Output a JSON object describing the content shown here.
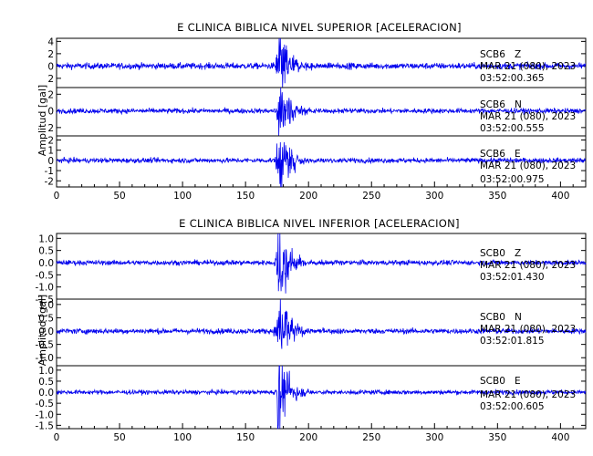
{
  "panels": [
    {
      "id": "superior",
      "title": "E CLINICA BIBLICA NIVEL SUPERIOR [ACELERACION]",
      "ylabel": "Amplitud [gal]",
      "xlim": [
        0,
        420
      ],
      "xticks": [
        0,
        50,
        100,
        150,
        200,
        250,
        300,
        350,
        400
      ],
      "traces": [
        {
          "station": "SCB6",
          "component": "Z",
          "date": "MAR 21 (080), 2023",
          "time": "03:52:00.365",
          "ylim": [
            -3.5,
            4.5
          ],
          "yticks": [
            "4",
            "2",
            "0",
            "2",
            "4"
          ],
          "ytick_values": [
            4,
            2,
            0,
            -2,
            -4
          ],
          "noise": 0.25,
          "peak": 4.4,
          "arrival": 176,
          "decay": 8
        },
        {
          "station": "SCB6",
          "component": "N",
          "date": "MAR 21 (080), 2023",
          "time": "03:52:00.555",
          "ylim": [
            -3,
            2.8
          ],
          "yticks": [
            "2",
            "0",
            "2"
          ],
          "ytick_values": [
            2,
            0,
            -2
          ],
          "noise": 0.15,
          "peak": 2.7,
          "arrival": 176,
          "decay": 9
        },
        {
          "station": "SCB6",
          "component": "E",
          "date": "MAR 21 (080), 2023",
          "time": "03:52:00.975",
          "ylim": [
            -2.6,
            2.4
          ],
          "yticks": [
            "2",
            "1",
            "0",
            "-1",
            "-2"
          ],
          "ytick_values": [
            2,
            1,
            0,
            -1,
            -2
          ],
          "noise": 0.12,
          "peak": 2.1,
          "arrival": 176,
          "decay": 9
        }
      ]
    },
    {
      "id": "inferior",
      "title": "E CLINICA BIBLICA NIVEL INFERIOR [ACELERACION]",
      "ylabel": "Amplitud [gal]",
      "xlim": [
        0,
        420
      ],
      "xticks": [
        0,
        50,
        100,
        150,
        200,
        250,
        300,
        350,
        400
      ],
      "traces": [
        {
          "station": "SCB0",
          "component": "Z",
          "date": "MAR 21 (080), 2023",
          "time": "03:52:01.430",
          "ylim": [
            -1.5,
            1.2
          ],
          "yticks": [
            "1.0",
            "0.5",
            "0.0",
            "-0.5",
            "-1.0",
            "-1.5"
          ],
          "ytick_values": [
            1.0,
            0.5,
            0.0,
            -0.5,
            -1.0,
            -1.5
          ],
          "noise": 0.05,
          "peak": 1.3,
          "arrival": 176,
          "decay": 7
        },
        {
          "station": "SCB0",
          "component": "N",
          "date": "MAR 21 (080), 2023",
          "time": "03:52:01.815",
          "ylim": [
            -1.3,
            1.2
          ],
          "yticks": [
            "1.0",
            "0.5",
            "0.0",
            "-0.5",
            "-1.0"
          ],
          "ytick_values": [
            1.0,
            0.5,
            0.0,
            -0.5,
            -1.0
          ],
          "noise": 0.05,
          "peak": 1.3,
          "arrival": 176,
          "decay": 7
        },
        {
          "station": "SCB0",
          "component": "E",
          "date": "MAR 21 (080), 2023",
          "time": "03:52:00.605",
          "ylim": [
            -1.65,
            1.2
          ],
          "yticks": [
            "1.0",
            "0.5",
            "0.0",
            "-0.5",
            "-1.0",
            "-1.5"
          ],
          "ytick_values": [
            1.0,
            0.5,
            0.0,
            -0.5,
            -1.0,
            -1.5
          ],
          "noise": 0.05,
          "peak": 1.5,
          "arrival": 176,
          "decay": 7
        }
      ]
    }
  ],
  "colors": {
    "trace": "#0000ee",
    "axis": "#000000",
    "background": "#ffffff"
  },
  "chart_data": [
    {
      "type": "line",
      "title": "E CLINICA BIBLICA NIVEL SUPERIOR [ACELERACION]",
      "xlabel": "",
      "ylabel": "Amplitud [gal]",
      "xlim": [
        0,
        420
      ],
      "series": [
        {
          "name": "SCB6 Z",
          "description_values": {
            "arrival_s": 176,
            "peak_gal": 4.4,
            "noise_gal": 0.25
          }
        },
        {
          "name": "SCB6 N",
          "description_values": {
            "arrival_s": 176,
            "peak_gal": 2.7,
            "noise_gal": 0.15
          }
        },
        {
          "name": "SCB6 E",
          "description_values": {
            "arrival_s": 176,
            "peak_gal": 2.1,
            "noise_gal": 0.12
          }
        }
      ],
      "grid": false
    },
    {
      "type": "line",
      "title": "E CLINICA BIBLICA NIVEL INFERIOR [ACELERACION]",
      "xlabel": "",
      "ylabel": "Amplitud [gal]",
      "xlim": [
        0,
        420
      ],
      "series": [
        {
          "name": "SCB0 Z",
          "description_values": {
            "arrival_s": 176,
            "peak_gal": 1.3,
            "noise_gal": 0.05
          }
        },
        {
          "name": "SCB0 N",
          "description_values": {
            "arrival_s": 176,
            "peak_gal": 1.3,
            "noise_gal": 0.05
          }
        },
        {
          "name": "SCB0 E",
          "description_values": {
            "arrival_s": 176,
            "peak_gal": 1.5,
            "noise_gal": 0.05
          }
        }
      ],
      "grid": false
    }
  ]
}
